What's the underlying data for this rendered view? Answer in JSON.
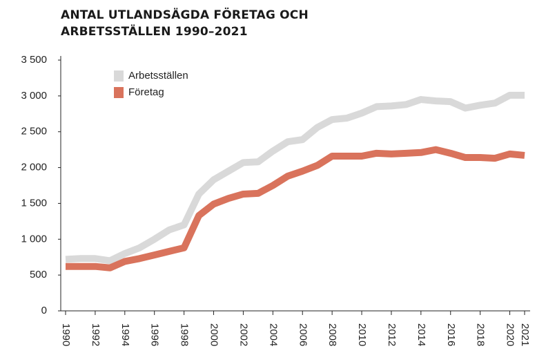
{
  "chart_data": {
    "type": "line",
    "title": "ANTAL UTLANDSÄGDA FÖRETAG OCH ARBETSSTÄLLEN 1990–2021",
    "x": [
      1990,
      1991,
      1992,
      1993,
      1994,
      1995,
      1996,
      1997,
      1998,
      1999,
      2000,
      2001,
      2002,
      2003,
      2004,
      2005,
      2006,
      2007,
      2008,
      2009,
      2010,
      2011,
      2012,
      2013,
      2014,
      2015,
      2016,
      2017,
      2018,
      2019,
      2020,
      2021
    ],
    "series": [
      {
        "name": "Arbetsställen",
        "color": "#d9d9d9",
        "values": [
          720,
          730,
          730,
          700,
          800,
          880,
          1000,
          1130,
          1200,
          1630,
          1830,
          1950,
          2070,
          2080,
          2230,
          2360,
          2390,
          2560,
          2670,
          2690,
          2760,
          2850,
          2860,
          2880,
          2950,
          2930,
          2920,
          2830,
          2870,
          2900,
          3010,
          3010
        ]
      },
      {
        "name": "Företag",
        "color": "#d9735c",
        "values": [
          620,
          620,
          620,
          600,
          690,
          730,
          780,
          830,
          880,
          1330,
          1490,
          1570,
          1630,
          1640,
          1750,
          1880,
          1950,
          2030,
          2160,
          2160,
          2160,
          2200,
          2190,
          2200,
          2210,
          2250,
          2200,
          2140,
          2140,
          2130,
          2190,
          2170
        ]
      }
    ],
    "xlim": [
      1990,
      2021
    ],
    "xticks": [
      1990,
      1992,
      1994,
      1996,
      1998,
      2000,
      2002,
      2004,
      2006,
      2008,
      2010,
      2012,
      2014,
      2016,
      2018,
      2020,
      2021
    ],
    "ylim": [
      0,
      3500
    ],
    "yticks": [
      0,
      500,
      {
        "value": 1000,
        "label": "1 000"
      },
      {
        "value": 1500,
        "label": "1 500"
      },
      {
        "value": 2000,
        "label": "2 000"
      },
      {
        "value": 2500,
        "label": "2 500"
      },
      {
        "value": 3000,
        "label": "3 000"
      },
      {
        "value": 3500,
        "label": "3 500"
      }
    ],
    "legend": "upper left"
  }
}
